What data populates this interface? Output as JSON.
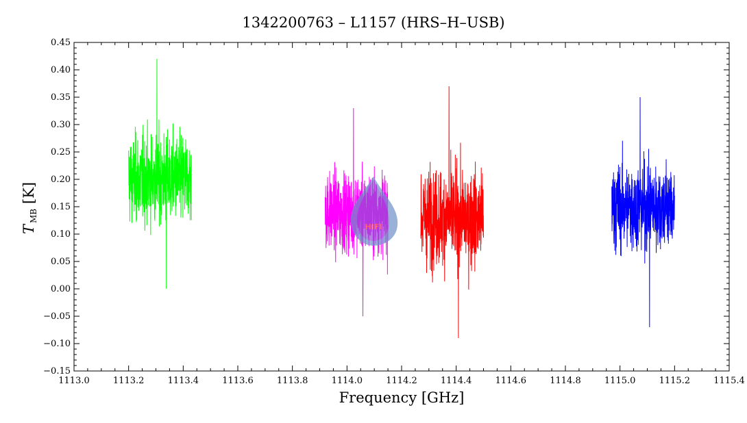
{
  "chart_data": {
    "type": "line",
    "title": "1342200763 – L1157 (HRS–H–USB)",
    "xlabel": "Frequency [GHz]",
    "ylabel_main": "T",
    "ylabel_sub": "MB",
    "ylabel_unit": "[K]",
    "xlim": [
      1113.0,
      1115.4
    ],
    "ylim": [
      -0.15,
      0.45
    ],
    "x_ticks": [
      "1113.0",
      "1113.2",
      "1113.4",
      "1113.6",
      "1113.8",
      "1114.0",
      "1114.2",
      "1114.4",
      "1114.6",
      "1114.8",
      "1115.0",
      "1115.2",
      "1115.4"
    ],
    "y_ticks": [
      "−0.15",
      "−0.10",
      "−0.05",
      "0.00",
      "0.05",
      "0.10",
      "0.15",
      "0.20",
      "0.25",
      "0.30",
      "0.35",
      "0.40",
      "0.45"
    ],
    "grid": false,
    "series": [
      {
        "color": "#00ff00",
        "x_range": [
          1113.2,
          1113.43
        ],
        "mean": 0.2,
        "min": 0.0,
        "max": 0.42
      },
      {
        "color": "#ff00ff",
        "x_range": [
          1113.92,
          1114.15
        ],
        "mean": 0.14,
        "min": -0.05,
        "max": 0.33
      },
      {
        "color": "#ff0000",
        "x_range": [
          1114.27,
          1114.5
        ],
        "mean": 0.13,
        "min": -0.09,
        "max": 0.37
      },
      {
        "color": "#0000ff",
        "x_range": [
          1114.97,
          1115.2
        ],
        "mean": 0.15,
        "min": -0.07,
        "max": 0.35
      }
    ]
  },
  "logo": {
    "text": "HIFI",
    "icon": "herschel-drop-logo"
  }
}
